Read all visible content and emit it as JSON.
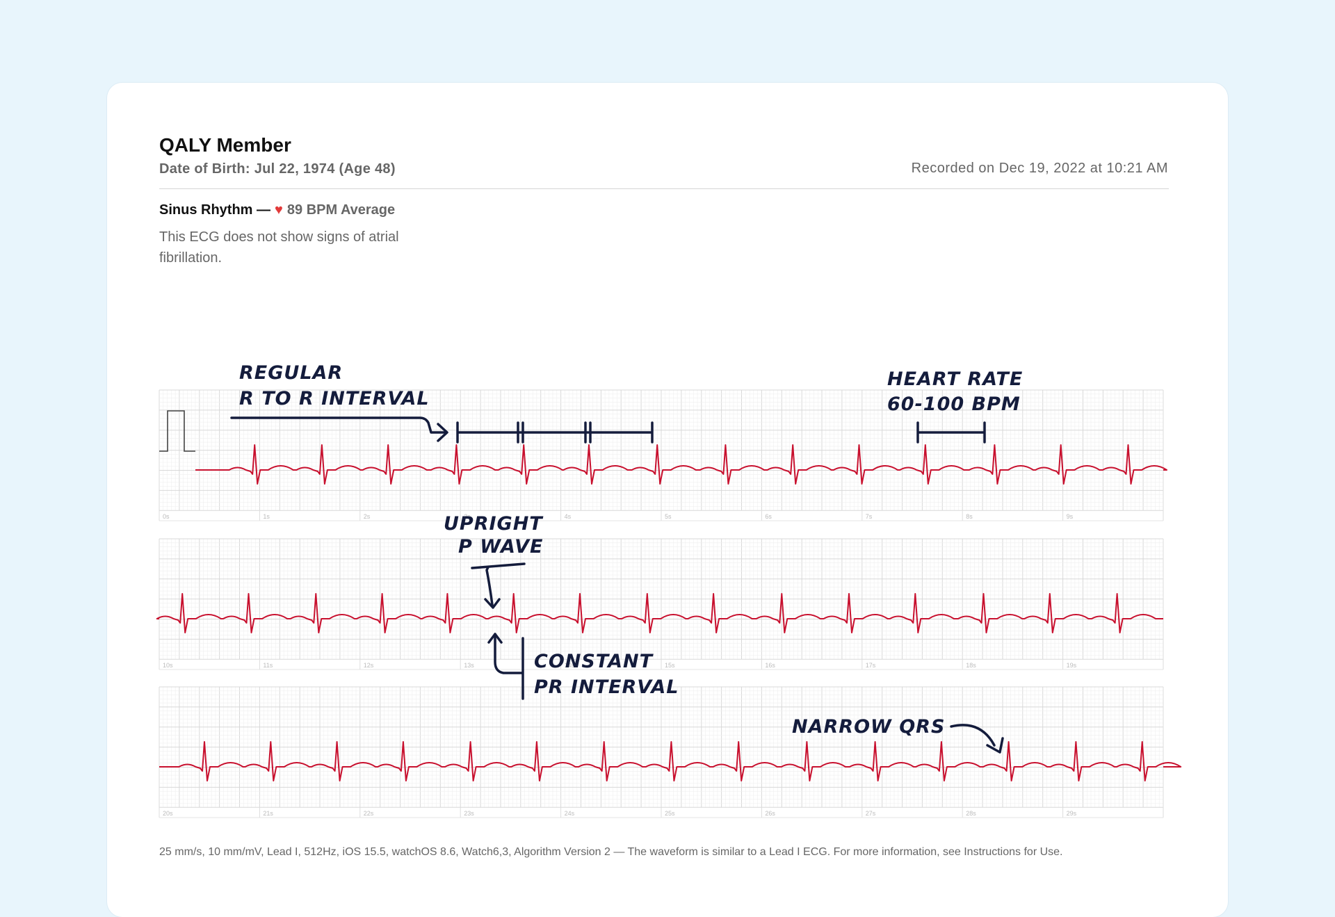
{
  "header": {
    "name": "QALY Member",
    "dob": "Date of Birth: Jul 22, 1974 (Age 48)",
    "recorded": "Recorded on Dec 19, 2022 at 10:21 AM"
  },
  "summary": {
    "rhythm_label": "Sinus Rhythm —",
    "heart_icon": "heart-icon",
    "bpm_text": "89 BPM Average",
    "description": "This ECG does not show signs of atrial fibrillation."
  },
  "annotations": {
    "rr_line1": "REGULAR",
    "rr_line2": "R TO R INTERVAL",
    "hr_line1": "HEART RATE",
    "hr_line2": "60-100 BPM",
    "p_line1": "UPRIGHT",
    "p_line2": "P WAVE",
    "pr_line1": "CONSTANT",
    "pr_line2": "PR INTERVAL",
    "qrs": "NARROW QRS"
  },
  "footer": "25 mm/s, 10 mm/mV, Lead I, 512Hz, iOS 15.5, watchOS 8.6, Watch6,3, Algorithm Version 2 — The waveform is similar to a Lead I ECG. For more information, see Instructions for Use.",
  "colors": {
    "trace": "#c8102e",
    "annotation": "#141c3c",
    "grid": "#e3e3e3",
    "heart": "#e23a3a"
  },
  "chart_data": {
    "type": "line",
    "title": "",
    "x_unit": "s",
    "strips": [
      {
        "start_s": 0,
        "tick_labels": [
          "0s",
          "1s",
          "2s",
          "3s",
          "4s",
          "5s",
          "6s",
          "7s",
          "8s",
          "9s"
        ],
        "beats_s": [
          0.95,
          1.62,
          2.28,
          2.96,
          3.63,
          4.28,
          4.96,
          5.64,
          6.31,
          6.97,
          7.63,
          8.32,
          8.98,
          9.65
        ]
      },
      {
        "start_s": 10,
        "tick_labels": [
          "10s",
          "11s",
          "12s",
          "13s",
          "14s",
          "15s",
          "16s",
          "17s",
          "18s",
          "19s"
        ],
        "beats_s": [
          10.23,
          10.89,
          11.56,
          12.22,
          12.87,
          13.53,
          14.19,
          14.86,
          15.52,
          16.2,
          16.87,
          17.53,
          18.21,
          18.87,
          19.54
        ]
      },
      {
        "start_s": 20,
        "tick_labels": [
          "20s",
          "21s",
          "22s",
          "23s",
          "24s",
          "25s",
          "26s",
          "27s",
          "28s",
          "29s"
        ],
        "beats_s": [
          20.45,
          21.11,
          21.77,
          22.43,
          23.1,
          23.76,
          24.43,
          25.1,
          25.77,
          26.45,
          27.13,
          27.79,
          28.46,
          29.13,
          29.79
        ]
      }
    ]
  }
}
